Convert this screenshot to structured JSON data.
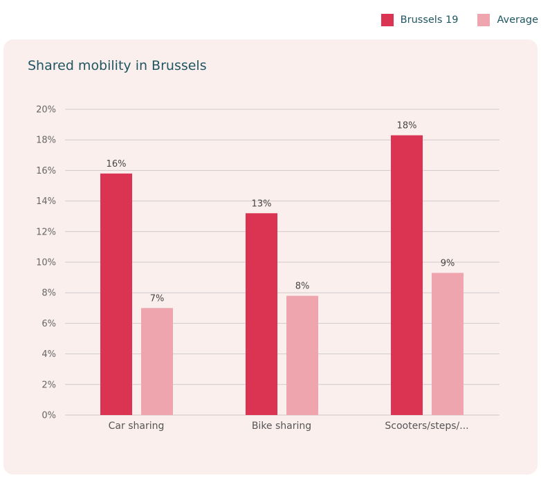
{
  "legend": [
    {
      "label": "Brussels 19",
      "color": "#da3452"
    },
    {
      "label": "Average",
      "color": "#eea5ae"
    }
  ],
  "chart_data": {
    "type": "bar",
    "title": "Shared mobility in Brussels",
    "xlabel": "",
    "ylabel": "",
    "ylim": [
      0,
      20
    ],
    "yticks": [
      0,
      2,
      4,
      6,
      8,
      10,
      12,
      14,
      16,
      18,
      20
    ],
    "ytick_labels": [
      "0%",
      "2%",
      "4%",
      "6%",
      "8%",
      "10%",
      "12%",
      "14%",
      "16%",
      "18%",
      "20%"
    ],
    "grid": true,
    "legend_position": "top-right",
    "categories": [
      "Car sharing",
      "Bike sharing",
      "Scooters/steps/..."
    ],
    "series": [
      {
        "name": "Brussels 19",
        "color": "#da3452",
        "values": [
          15.8,
          13.2,
          18.3
        ],
        "labels": [
          "16%",
          "13%",
          "18%"
        ]
      },
      {
        "name": "Average",
        "color": "#eea5ae",
        "values": [
          7.0,
          7.8,
          9.3
        ],
        "labels": [
          "7%",
          "8%",
          "9%"
        ]
      }
    ]
  }
}
